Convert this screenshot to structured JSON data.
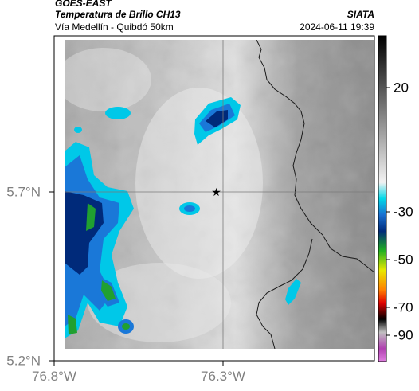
{
  "header": {
    "title": "GOES-EAST",
    "subtitle": "Temperatura de Brillo CH13",
    "organization": "SIATA",
    "location": "Vía Medellín - Quibdó 50km",
    "datetime": "2024-06-11 19:39"
  },
  "axes": {
    "x_ticks": [
      {
        "value": -76.8,
        "label": "76.8°W"
      },
      {
        "value": -76.3,
        "label": "76.3°W"
      }
    ],
    "y_ticks": [
      {
        "value": 5.7,
        "label": "5.7°N"
      },
      {
        "value": 5.2,
        "label": "5.2°N"
      }
    ],
    "gridlines": true
  },
  "marker": {
    "icon": "star-icon",
    "lon": -76.32,
    "lat": 5.7
  },
  "colorbar": {
    "ticks": [
      {
        "value": 20,
        "label": "20"
      },
      {
        "value": -30,
        "label": "-30"
      },
      {
        "value": -50,
        "label": "-50"
      },
      {
        "value": -70,
        "label": "-70"
      },
      {
        "value": -90,
        "label": "-90"
      }
    ],
    "colors": {
      "cyan": "#00d8e8",
      "blue": "#1a6fd0",
      "navy": "#002a7a",
      "green": "#20b020",
      "yellow": "#e8e800",
      "orange": "#ff8000",
      "red": "#e00000",
      "black": "#000000",
      "magenta": "#b040b0"
    }
  }
}
